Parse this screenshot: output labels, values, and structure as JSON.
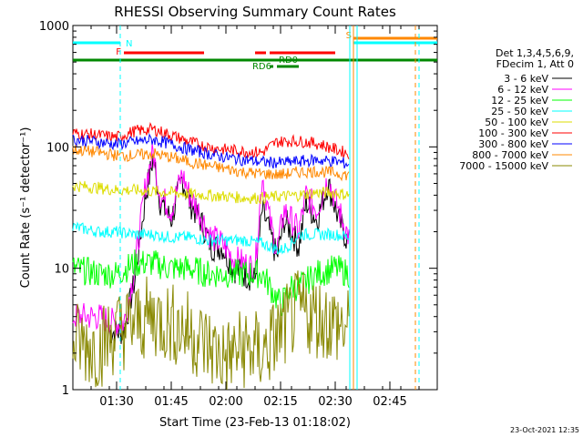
{
  "chart_data": {
    "type": "line",
    "title": "RHESSI Observing Summary Count Rates",
    "xlabel": "Start Time (23-Feb-13 01:18:02)",
    "ylabel": "Count Rate (s⁻¹ detector⁻¹)",
    "y_scale": "log",
    "ylim": [
      1,
      1000
    ],
    "xlim": [
      "01:18",
      "02:58"
    ],
    "x_ticks": [
      "01:30",
      "01:45",
      "02:00",
      "02:15",
      "02:30",
      "02:45"
    ],
    "y_ticks": [
      "1",
      "10",
      "100",
      "1000"
    ],
    "legend": {
      "placement": "right",
      "header": [
        "Det 1,3,4,5,6,9,",
        "FDecim 1, Att 0"
      ]
    },
    "series": [
      {
        "name": "3 - 6 keV",
        "color": "#000000",
        "x": [
          "01:28",
          "01:32",
          "01:35",
          "01:38",
          "01:40",
          "01:42",
          "01:45",
          "01:48",
          "01:50",
          "01:53",
          "01:56",
          "01:59",
          "02:02",
          "02:05",
          "02:08",
          "02:10",
          "02:12",
          "02:14",
          "02:16",
          "02:18",
          "02:20",
          "02:22",
          "02:25",
          "02:28",
          "02:31",
          "02:34"
        ],
        "values": [
          3,
          3,
          8,
          40,
          80,
          35,
          25,
          55,
          35,
          25,
          15,
          15,
          10,
          9,
          8,
          30,
          20,
          12,
          25,
          20,
          15,
          35,
          25,
          50,
          25,
          15
        ]
      },
      {
        "name": "6 - 12 keV",
        "color": "#ff00ff",
        "x": [
          "01:18",
          "01:25",
          "01:30",
          "01:32",
          "01:35",
          "01:38",
          "01:40",
          "01:42",
          "01:45",
          "01:48",
          "01:50",
          "01:53",
          "01:56",
          "01:59",
          "02:02",
          "02:05",
          "02:08",
          "02:10",
          "02:12",
          "02:14",
          "02:16",
          "02:18",
          "02:20",
          "02:22",
          "02:25",
          "02:28",
          "02:31",
          "02:34"
        ],
        "values": [
          4,
          4,
          3.5,
          3.5,
          10,
          50,
          90,
          40,
          30,
          60,
          40,
          28,
          18,
          16,
          12,
          11,
          10,
          60,
          25,
          14,
          30,
          25,
          20,
          40,
          30,
          55,
          30,
          17
        ]
      },
      {
        "name": "12 - 25 keV",
        "color": "#00ff00",
        "x": [
          "01:18",
          "01:25",
          "01:30",
          "01:35",
          "01:40",
          "01:45",
          "01:50",
          "01:55",
          "02:00",
          "02:05",
          "02:10",
          "02:15",
          "02:18",
          "02:20",
          "02:25",
          "02:30",
          "02:34"
        ],
        "values": [
          10,
          9,
          9,
          11,
          11,
          10,
          10,
          9,
          9,
          9,
          9,
          5,
          7,
          7,
          9,
          10,
          9
        ]
      },
      {
        "name": "25 - 50 keV",
        "color": "#00ffff",
        "x": [
          "01:18",
          "01:25",
          "01:30",
          "01:35",
          "01:40",
          "01:45",
          "01:50",
          "01:55",
          "02:00",
          "02:05",
          "02:10",
          "02:15",
          "02:18",
          "02:20",
          "02:25",
          "02:30",
          "02:34"
        ],
        "values": [
          22,
          20,
          20,
          19,
          19,
          18,
          18,
          17,
          17,
          17,
          16,
          14,
          16,
          19,
          19,
          19,
          18
        ]
      },
      {
        "name": "50 - 100 keV",
        "color": "#dddd00",
        "x": [
          "01:18",
          "01:25",
          "01:30",
          "01:35",
          "01:40",
          "01:45",
          "01:50",
          "01:55",
          "02:00",
          "02:05",
          "02:10",
          "02:15",
          "02:20",
          "02:25",
          "02:30",
          "02:34"
        ],
        "values": [
          48,
          46,
          44,
          44,
          43,
          42,
          41,
          40,
          39,
          38,
          38,
          39,
          40,
          42,
          42,
          40
        ]
      },
      {
        "name": "100 - 300 keV",
        "color": "#ff0000",
        "x": [
          "01:18",
          "01:25",
          "01:30",
          "01:35",
          "01:40",
          "01:45",
          "01:50",
          "01:55",
          "02:00",
          "02:05",
          "02:10",
          "02:12",
          "02:14",
          "02:18",
          "02:22",
          "02:26",
          "02:30",
          "02:34"
        ],
        "values": [
          130,
          125,
          120,
          135,
          140,
          125,
          110,
          100,
          95,
          92,
          90,
          100,
          110,
          112,
          110,
          105,
          95,
          88
        ]
      },
      {
        "name": "300 - 800 keV",
        "color": "#0000ff",
        "x": [
          "01:18",
          "01:25",
          "01:30",
          "01:35",
          "01:40",
          "01:45",
          "01:50",
          "01:55",
          "02:00",
          "02:05",
          "02:10",
          "02:15",
          "02:20",
          "02:25",
          "02:30",
          "02:34"
        ],
        "values": [
          115,
          110,
          105,
          110,
          115,
          105,
          95,
          88,
          82,
          78,
          75,
          74,
          76,
          78,
          76,
          72
        ]
      },
      {
        "name": "800 - 7000 keV",
        "color": "#ff8800",
        "x": [
          "01:18",
          "01:25",
          "01:30",
          "01:35",
          "01:40",
          "01:45",
          "01:50",
          "01:55",
          "02:00",
          "02:05",
          "02:10",
          "02:15",
          "02:20",
          "02:25",
          "02:30",
          "02:34"
        ],
        "values": [
          95,
          90,
          85,
          85,
          88,
          82,
          75,
          70,
          66,
          62,
          60,
          59,
          62,
          63,
          61,
          58
        ]
      },
      {
        "name": "7000 - 15000 keV",
        "color": "#888800",
        "x": [
          "01:18",
          "01:25",
          "01:30",
          "01:35",
          "01:40",
          "01:45",
          "01:50",
          "01:55",
          "02:00",
          "02:05",
          "02:10",
          "02:15",
          "02:20",
          "02:25",
          "02:30",
          "02:34"
        ],
        "values": [
          2.5,
          2.2,
          3,
          3.5,
          4,
          3.5,
          3,
          2.3,
          1.8,
          2.2,
          2,
          3,
          4.5,
          4,
          3.5,
          3
        ]
      }
    ],
    "flags": [
      {
        "label": "N",
        "color": "#00ffff",
        "x": [
          "01:18",
          "01:31"
        ]
      },
      {
        "label": "F",
        "color": "#ff0000",
        "x": [
          "01:32",
          "01:54"
        ]
      },
      {
        "label": "",
        "color": "#ff0000",
        "x": [
          "02:08",
          "02:11"
        ]
      },
      {
        "label": "",
        "color": "#ff0000",
        "x": [
          "02:12",
          "02:30"
        ]
      },
      {
        "label": "",
        "color": "#008800",
        "x": [
          "01:18",
          "02:58"
        ]
      },
      {
        "label": "RD0",
        "color": "#008800",
        "x": [
          "02:14",
          "02:20"
        ]
      },
      {
        "label": "RD6",
        "color": "#008800",
        "x": [
          "02:12",
          "02:13"
        ]
      },
      {
        "label": "S",
        "color": "#ff8800",
        "x": [
          "02:35",
          "02:58"
        ]
      },
      {
        "label": "",
        "color": "#00ffff",
        "x": [
          "02:35",
          "02:58"
        ]
      }
    ],
    "vlines": [
      {
        "x": "01:31",
        "color": "#00ffff",
        "style": "dashed"
      },
      {
        "x": "02:34",
        "color": "#00ffff",
        "style": "solid"
      },
      {
        "x": "02:35",
        "color": "#ff8800",
        "style": "solid"
      },
      {
        "x": "02:36",
        "color": "#00ffff",
        "style": "solid"
      },
      {
        "x": "02:52",
        "color": "#ff8800",
        "style": "dashed"
      },
      {
        "x": "02:53",
        "color": "#00ffff",
        "style": "dashed"
      }
    ],
    "footer_timestamp": "23-Oct-2021 12:35"
  }
}
